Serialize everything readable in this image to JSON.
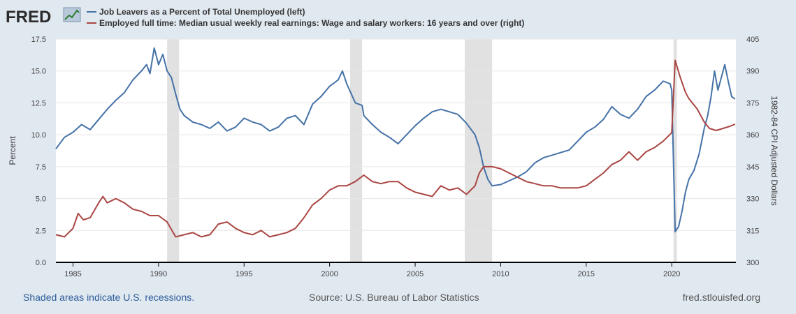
{
  "brand": {
    "name": "FRED"
  },
  "footer": {
    "recession_note": "Shaded areas indicate U.S. recessions.",
    "source": "Source: U.S. Bureau of Labor Statistics",
    "site": "fred.stlouisfed.org"
  },
  "colors": {
    "background": "#e1e9f0",
    "plot_bg": "#ffffff",
    "series_left": "#4572a7",
    "series_right": "#aa4643",
    "recession": "#e1e1e1",
    "footer_link": "#2a5a99",
    "footer_gray": "#555555"
  },
  "chart_data": {
    "type": "line",
    "x_range": [
      1984.0,
      2023.75
    ],
    "x_ticks": [
      1985,
      1990,
      1995,
      2000,
      2005,
      2010,
      2015,
      2020
    ],
    "y_left": {
      "label": "Percent",
      "range": [
        0,
        17.5
      ],
      "ticks": [
        "0.0",
        "2.5",
        "5.0",
        "7.5",
        "10.0",
        "12.5",
        "15.0",
        "17.5"
      ]
    },
    "y_right": {
      "label": "1982-84 CPI Adjusted Dollars",
      "range": [
        300,
        405
      ],
      "ticks": [
        "300",
        "315",
        "330",
        "345",
        "360",
        "375",
        "390",
        "405"
      ]
    },
    "recessions": [
      [
        1990.5,
        1991.2
      ],
      [
        2001.2,
        2001.9
      ],
      [
        2007.9,
        2009.5
      ],
      [
        2020.1,
        2020.3
      ]
    ],
    "series": [
      {
        "name": "Job Leavers as a Percent of Total Unemployed (left)",
        "axis": "left",
        "points": [
          [
            1984.0,
            8.9
          ],
          [
            1984.5,
            9.8
          ],
          [
            1985.0,
            10.2
          ],
          [
            1985.5,
            10.8
          ],
          [
            1986.0,
            10.4
          ],
          [
            1986.5,
            11.2
          ],
          [
            1987.0,
            12.0
          ],
          [
            1987.5,
            12.7
          ],
          [
            1988.0,
            13.3
          ],
          [
            1988.5,
            14.3
          ],
          [
            1989.0,
            15.0
          ],
          [
            1989.3,
            15.5
          ],
          [
            1989.5,
            14.8
          ],
          [
            1989.75,
            16.8
          ],
          [
            1990.0,
            15.5
          ],
          [
            1990.25,
            16.3
          ],
          [
            1990.5,
            15.0
          ],
          [
            1990.75,
            14.5
          ],
          [
            1991.0,
            13.2
          ],
          [
            1991.25,
            12.0
          ],
          [
            1991.5,
            11.5
          ],
          [
            1992.0,
            11.0
          ],
          [
            1992.5,
            10.8
          ],
          [
            1993.0,
            10.5
          ],
          [
            1993.5,
            11.0
          ],
          [
            1994.0,
            10.3
          ],
          [
            1994.5,
            10.6
          ],
          [
            1995.0,
            11.3
          ],
          [
            1995.5,
            11.0
          ],
          [
            1996.0,
            10.8
          ],
          [
            1996.5,
            10.3
          ],
          [
            1997.0,
            10.6
          ],
          [
            1997.5,
            11.3
          ],
          [
            1998.0,
            11.5
          ],
          [
            1998.5,
            10.8
          ],
          [
            1999.0,
            12.4
          ],
          [
            1999.5,
            13.0
          ],
          [
            2000.0,
            13.8
          ],
          [
            2000.5,
            14.3
          ],
          [
            2000.75,
            15.0
          ],
          [
            2001.0,
            14.0
          ],
          [
            2001.5,
            12.5
          ],
          [
            2001.9,
            12.3
          ],
          [
            2002.0,
            11.5
          ],
          [
            2002.5,
            10.8
          ],
          [
            2003.0,
            10.2
          ],
          [
            2003.5,
            9.8
          ],
          [
            2004.0,
            9.3
          ],
          [
            2004.5,
            10.0
          ],
          [
            2005.0,
            10.7
          ],
          [
            2005.5,
            11.3
          ],
          [
            2006.0,
            11.8
          ],
          [
            2006.5,
            12.0
          ],
          [
            2007.0,
            11.8
          ],
          [
            2007.5,
            11.6
          ],
          [
            2008.0,
            10.9
          ],
          [
            2008.5,
            10.0
          ],
          [
            2008.75,
            9.0
          ],
          [
            2009.0,
            7.5
          ],
          [
            2009.25,
            6.5
          ],
          [
            2009.5,
            6.0
          ],
          [
            2010.0,
            6.1
          ],
          [
            2010.5,
            6.4
          ],
          [
            2011.0,
            6.7
          ],
          [
            2011.5,
            7.1
          ],
          [
            2012.0,
            7.8
          ],
          [
            2012.5,
            8.2
          ],
          [
            2013.0,
            8.4
          ],
          [
            2013.5,
            8.6
          ],
          [
            2014.0,
            8.8
          ],
          [
            2014.5,
            9.5
          ],
          [
            2015.0,
            10.2
          ],
          [
            2015.5,
            10.6
          ],
          [
            2016.0,
            11.2
          ],
          [
            2016.5,
            12.2
          ],
          [
            2017.0,
            11.6
          ],
          [
            2017.5,
            11.3
          ],
          [
            2018.0,
            12.0
          ],
          [
            2018.5,
            13.0
          ],
          [
            2019.0,
            13.5
          ],
          [
            2019.5,
            14.2
          ],
          [
            2019.9,
            14.0
          ],
          [
            2020.0,
            13.5
          ],
          [
            2020.2,
            2.4
          ],
          [
            2020.4,
            2.8
          ],
          [
            2020.6,
            4.0
          ],
          [
            2020.8,
            5.5
          ],
          [
            2021.0,
            6.5
          ],
          [
            2021.3,
            7.2
          ],
          [
            2021.6,
            8.5
          ],
          [
            2021.9,
            10.5
          ],
          [
            2022.1,
            11.5
          ],
          [
            2022.3,
            13.0
          ],
          [
            2022.5,
            15.0
          ],
          [
            2022.7,
            13.5
          ],
          [
            2022.9,
            14.5
          ],
          [
            2023.1,
            15.5
          ],
          [
            2023.3,
            14.2
          ],
          [
            2023.5,
            13.0
          ],
          [
            2023.7,
            12.8
          ]
        ]
      },
      {
        "name": "Employed full time: Median usual weekly real earnings: Wage and salary workers: 16 years and over (right)",
        "axis": "right",
        "points": [
          [
            1984.0,
            313
          ],
          [
            1984.5,
            312
          ],
          [
            1985.0,
            316
          ],
          [
            1985.3,
            323
          ],
          [
            1985.6,
            320
          ],
          [
            1986.0,
            321
          ],
          [
            1986.5,
            328
          ],
          [
            1986.75,
            331
          ],
          [
            1987.0,
            328
          ],
          [
            1987.5,
            330
          ],
          [
            1988.0,
            328
          ],
          [
            1988.5,
            325
          ],
          [
            1989.0,
            324
          ],
          [
            1989.5,
            322
          ],
          [
            1990.0,
            322
          ],
          [
            1990.5,
            319
          ],
          [
            1991.0,
            312
          ],
          [
            1991.5,
            313
          ],
          [
            1992.0,
            314
          ],
          [
            1992.5,
            312
          ],
          [
            1993.0,
            313
          ],
          [
            1993.5,
            318
          ],
          [
            1994.0,
            319
          ],
          [
            1994.5,
            316
          ],
          [
            1995.0,
            314
          ],
          [
            1995.5,
            313
          ],
          [
            1996.0,
            315
          ],
          [
            1996.5,
            312
          ],
          [
            1997.0,
            313
          ],
          [
            1997.5,
            314
          ],
          [
            1998.0,
            316
          ],
          [
            1998.5,
            321
          ],
          [
            1999.0,
            327
          ],
          [
            1999.5,
            330
          ],
          [
            2000.0,
            334
          ],
          [
            2000.5,
            336
          ],
          [
            2001.0,
            336
          ],
          [
            2001.5,
            338
          ],
          [
            2002.0,
            341
          ],
          [
            2002.5,
            338
          ],
          [
            2003.0,
            337
          ],
          [
            2003.5,
            338
          ],
          [
            2004.0,
            338
          ],
          [
            2004.5,
            335
          ],
          [
            2005.0,
            333
          ],
          [
            2005.5,
            332
          ],
          [
            2006.0,
            331
          ],
          [
            2006.5,
            336
          ],
          [
            2007.0,
            334
          ],
          [
            2007.5,
            335
          ],
          [
            2008.0,
            332
          ],
          [
            2008.5,
            336
          ],
          [
            2008.75,
            342
          ],
          [
            2009.0,
            345
          ],
          [
            2009.5,
            345
          ],
          [
            2010.0,
            344
          ],
          [
            2010.5,
            342
          ],
          [
            2011.0,
            340
          ],
          [
            2011.5,
            338
          ],
          [
            2012.0,
            337
          ],
          [
            2012.5,
            336
          ],
          [
            2013.0,
            336
          ],
          [
            2013.5,
            335
          ],
          [
            2014.0,
            335
          ],
          [
            2014.5,
            335
          ],
          [
            2015.0,
            336
          ],
          [
            2015.5,
            339
          ],
          [
            2016.0,
            342
          ],
          [
            2016.5,
            346
          ],
          [
            2017.0,
            348
          ],
          [
            2017.5,
            352
          ],
          [
            2018.0,
            348
          ],
          [
            2018.5,
            352
          ],
          [
            2019.0,
            354
          ],
          [
            2019.5,
            357
          ],
          [
            2020.0,
            361
          ],
          [
            2020.2,
            395
          ],
          [
            2020.5,
            387
          ],
          [
            2020.8,
            380
          ],
          [
            2021.0,
            377
          ],
          [
            2021.5,
            372
          ],
          [
            2021.9,
            366
          ],
          [
            2022.2,
            363
          ],
          [
            2022.6,
            362
          ],
          [
            2023.0,
            363
          ],
          [
            2023.4,
            364
          ],
          [
            2023.7,
            365
          ]
        ]
      }
    ]
  }
}
